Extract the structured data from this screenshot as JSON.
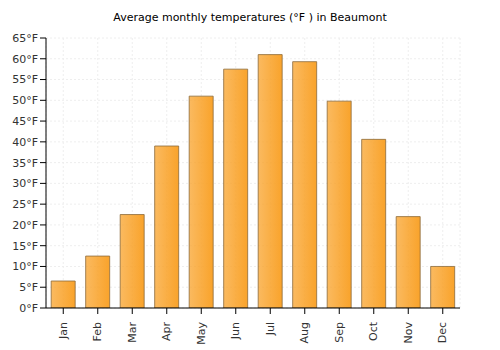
{
  "chart_data": {
    "type": "bar",
    "title": "Average monthly temperatures (°F ) in Beaumont",
    "categories": [
      "Jan",
      "Feb",
      "Mar",
      "Apr",
      "May",
      "Jun",
      "Jul",
      "Aug",
      "Sep",
      "Oct",
      "Nov",
      "Dec"
    ],
    "values": [
      6.5,
      12.5,
      22.5,
      39,
      51,
      57.5,
      61,
      59.3,
      49.8,
      40.6,
      22,
      10
    ],
    "color": "#f9a32b",
    "ylim": [
      0,
      65
    ],
    "yticks": [
      {
        "value": 0,
        "label": "0°F"
      },
      {
        "value": 5,
        "label": "5°F"
      },
      {
        "value": 10,
        "label": "10°F"
      },
      {
        "value": 15,
        "label": "15°F"
      },
      {
        "value": 20,
        "label": "20°F"
      },
      {
        "value": 25,
        "label": "25°F"
      },
      {
        "value": 30,
        "label": "30°F"
      },
      {
        "value": 35,
        "label": "35°F"
      },
      {
        "value": 40,
        "label": "40°F"
      },
      {
        "value": 45,
        "label": "45°F"
      },
      {
        "value": 50,
        "label": "50°F"
      },
      {
        "value": 55,
        "label": "55°F"
      },
      {
        "value": 60,
        "label": "60°F"
      },
      {
        "value": 65,
        "label": "65°F"
      }
    ],
    "grid": true
  }
}
